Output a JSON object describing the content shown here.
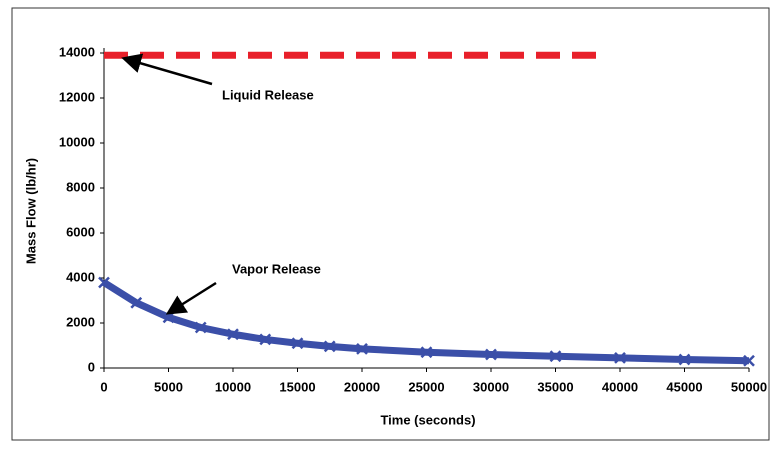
{
  "chart_data": {
    "type": "line",
    "xlabel": "Time (seconds)",
    "ylabel": "Mass Flow (lb/hr)",
    "xlim": [
      0,
      50000
    ],
    "xticks": [
      0,
      5000,
      10000,
      15000,
      20000,
      25000,
      30000,
      35000,
      40000,
      45000,
      50000
    ],
    "ylim": [
      0,
      14000
    ],
    "yticks": [
      0,
      2000,
      4000,
      6000,
      8000,
      10000,
      12000,
      14000
    ],
    "series": [
      {
        "name": "Liquid Release",
        "color": "#e8202a",
        "style": "dashed",
        "x": [
          0,
          39000
        ],
        "values": [
          13900,
          13900
        ]
      },
      {
        "name": "Vapor Release",
        "color": "#3b4fa8",
        "style": "markers",
        "x": [
          0,
          2500,
          5000,
          7500,
          10000,
          12500,
          15000,
          17500,
          20000,
          25000,
          30000,
          35000,
          40000,
          45000,
          50000
        ],
        "values": [
          3800,
          2900,
          2250,
          1800,
          1500,
          1270,
          1100,
          960,
          850,
          700,
          600,
          520,
          450,
          380,
          320
        ]
      }
    ]
  }
}
